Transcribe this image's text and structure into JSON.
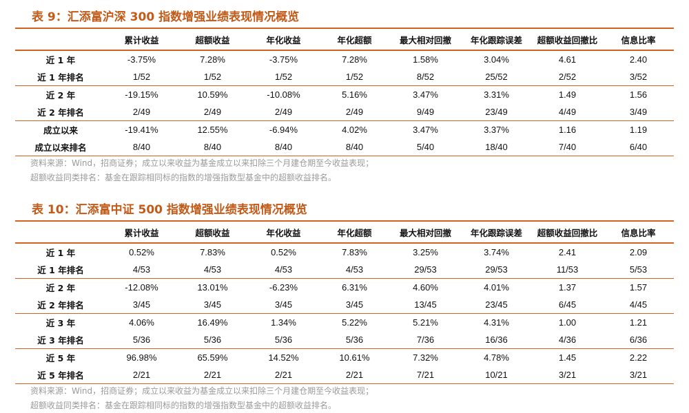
{
  "table1": {
    "title": "表 9：汇添富沪深 300 指数增强业绩表现情况概览",
    "headers": [
      "",
      "累计收益",
      "超额收益",
      "年化收益",
      "年化超额",
      "最大相对回撤",
      "年化跟踪误差",
      "超额收益回撤比",
      "信息比率"
    ],
    "rows": [
      [
        "近 1 年",
        "-3.75%",
        "7.28%",
        "-3.75%",
        "7.28%",
        "1.58%",
        "3.04%",
        "4.61",
        "2.40"
      ],
      [
        "近 1 年排名",
        "1/52",
        "1/52",
        "1/52",
        "1/52",
        "8/52",
        "25/52",
        "2/52",
        "3/52"
      ],
      [
        "近 2 年",
        "-19.15%",
        "10.59%",
        "-10.08%",
        "5.16%",
        "3.47%",
        "3.31%",
        "1.49",
        "1.56"
      ],
      [
        "近 2 年排名",
        "2/49",
        "2/49",
        "2/49",
        "2/49",
        "9/49",
        "23/49",
        "4/49",
        "3/49"
      ],
      [
        "成立以来",
        "-19.41%",
        "12.55%",
        "-6.94%",
        "4.02%",
        "3.47%",
        "3.37%",
        "1.16",
        "1.19"
      ],
      [
        "成立以来排名",
        "8/40",
        "8/40",
        "8/40",
        "8/40",
        "5/40",
        "18/40",
        "7/40",
        "6/40"
      ]
    ],
    "notes": [
      "资料来源：Wind，招商证券；成立以来收益为基金成立以来扣除三个月建仓期至今收益表现；",
      "超额收益同类排名：基金在跟踪相同标的指数的增强指数型基金中的超额收益排名。"
    ]
  },
  "table2": {
    "title": "表 10：汇添富中证 500 指数增强业绩表现情况概览",
    "headers": [
      "",
      "累计收益",
      "超额收益",
      "年化收益",
      "年化超额",
      "最大相对回撤",
      "年化跟踪误差",
      "超额收益回撤比",
      "信息比率"
    ],
    "rows": [
      [
        "近 1 年",
        "0.52%",
        "7.83%",
        "0.52%",
        "7.83%",
        "3.25%",
        "3.74%",
        "2.41",
        "2.09"
      ],
      [
        "近 1 年排名",
        "4/53",
        "4/53",
        "4/53",
        "4/53",
        "29/53",
        "29/53",
        "11/53",
        "5/53"
      ],
      [
        "近 2 年",
        "-12.08%",
        "13.01%",
        "-6.23%",
        "6.31%",
        "4.60%",
        "4.01%",
        "1.37",
        "1.57"
      ],
      [
        "近 2 年排名",
        "3/45",
        "3/45",
        "3/45",
        "3/45",
        "13/45",
        "23/45",
        "6/45",
        "4/45"
      ],
      [
        "近 3 年",
        "4.06%",
        "16.49%",
        "1.34%",
        "5.22%",
        "5.21%",
        "4.31%",
        "1.00",
        "1.21"
      ],
      [
        "近 3 年排名",
        "5/36",
        "5/36",
        "5/36",
        "5/36",
        "7/36",
        "16/36",
        "4/36",
        "6/36"
      ],
      [
        "近 5 年",
        "96.98%",
        "65.59%",
        "14.52%",
        "10.61%",
        "7.32%",
        "4.78%",
        "1.45",
        "2.22"
      ],
      [
        "近 5 年排名",
        "2/21",
        "2/21",
        "2/21",
        "2/21",
        "7/21",
        "10/21",
        "3/21",
        "3/21"
      ]
    ],
    "notes": [
      "资料来源：Wind，招商证券；成立以来收益为基金成立以来扣除三个月建仓期至今收益表现；",
      "超额收益同类排名：基金在跟踪相同标的指数的增强指数型基金中的超额收益排名。"
    ]
  }
}
